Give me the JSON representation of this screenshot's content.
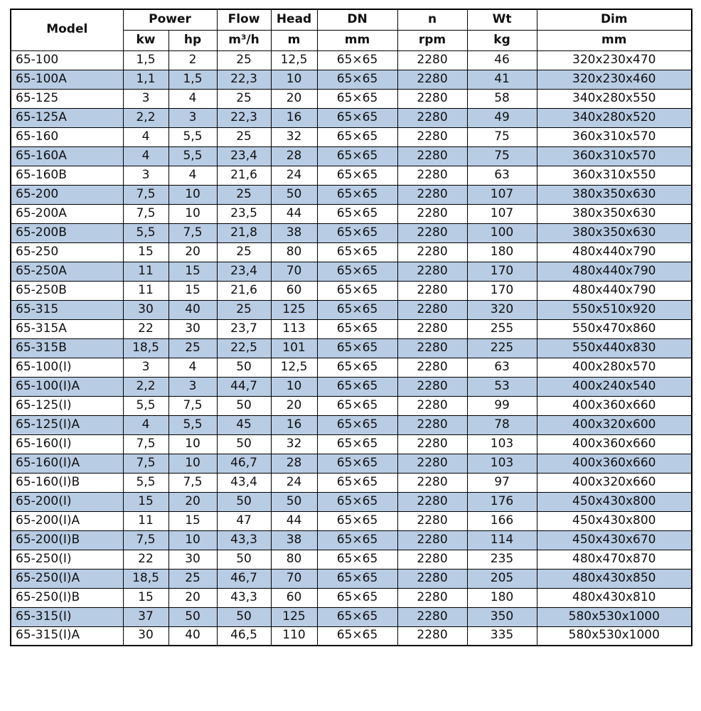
{
  "colors": {
    "row_bg": "#ffffff",
    "row_alt_bg": "#b8cce4",
    "border": "#000000",
    "text": "#111111"
  },
  "chart_data": {
    "type": "table",
    "header": {
      "row1": [
        {
          "label": "Model",
          "rowspan": 2
        },
        {
          "label": "Power",
          "colspan": 2
        },
        {
          "label": "Flow"
        },
        {
          "label": "Head"
        },
        {
          "label": "DN"
        },
        {
          "label": "n"
        },
        {
          "label": "Wt"
        },
        {
          "label": "Dim"
        }
      ],
      "row2": [
        "kw",
        "hp",
        "m³/h",
        "m",
        "mm",
        "rpm",
        "kg",
        "mm"
      ]
    },
    "rows": [
      [
        "65-100",
        "1,5",
        "2",
        "25",
        "12,5",
        "65×65",
        "2280",
        "46",
        "320x230x470"
      ],
      [
        "65-100A",
        "1,1",
        "1,5",
        "22,3",
        "10",
        "65×65",
        "2280",
        "41",
        "320x230x460"
      ],
      [
        "65-125",
        "3",
        "4",
        "25",
        "20",
        "65×65",
        "2280",
        "58",
        "340x280x550"
      ],
      [
        "65-125A",
        "2,2",
        "3",
        "22,3",
        "16",
        "65×65",
        "2280",
        "49",
        "340x280x520"
      ],
      [
        "65-160",
        "4",
        "5,5",
        "25",
        "32",
        "65×65",
        "2280",
        "75",
        "360x310x570"
      ],
      [
        "65-160A",
        "4",
        "5,5",
        "23,4",
        "28",
        "65×65",
        "2280",
        "75",
        "360x310x570"
      ],
      [
        "65-160B",
        "3",
        "4",
        "21,6",
        "24",
        "65×65",
        "2280",
        "63",
        "360x310x550"
      ],
      [
        "65-200",
        "7,5",
        "10",
        "25",
        "50",
        "65×65",
        "2280",
        "107",
        "380x350x630"
      ],
      [
        "65-200A",
        "7,5",
        "10",
        "23,5",
        "44",
        "65×65",
        "2280",
        "107",
        "380x350x630"
      ],
      [
        "65-200B",
        "5,5",
        "7,5",
        "21,8",
        "38",
        "65×65",
        "2280",
        "100",
        "380x350x630"
      ],
      [
        "65-250",
        "15",
        "20",
        "25",
        "80",
        "65×65",
        "2280",
        "180",
        "480x440x790"
      ],
      [
        "65-250A",
        "11",
        "15",
        "23,4",
        "70",
        "65×65",
        "2280",
        "170",
        "480x440x790"
      ],
      [
        "65-250B",
        "11",
        "15",
        "21,6",
        "60",
        "65×65",
        "2280",
        "170",
        "480x440x790"
      ],
      [
        "65-315",
        "30",
        "40",
        "25",
        "125",
        "65×65",
        "2280",
        "320",
        "550x510x920"
      ],
      [
        "65-315A",
        "22",
        "30",
        "23,7",
        "113",
        "65×65",
        "2280",
        "255",
        "550x470x860"
      ],
      [
        "65-315B",
        "18,5",
        "25",
        "22,5",
        "101",
        "65×65",
        "2280",
        "225",
        "550x440x830"
      ],
      [
        "65-100(I)",
        "3",
        "4",
        "50",
        "12,5",
        "65×65",
        "2280",
        "63",
        "400x280x570"
      ],
      [
        "65-100(I)A",
        "2,2",
        "3",
        "44,7",
        "10",
        "65×65",
        "2280",
        "53",
        "400x240x540"
      ],
      [
        "65-125(I)",
        "5,5",
        "7,5",
        "50",
        "20",
        "65×65",
        "2280",
        "99",
        "400x360x660"
      ],
      [
        "65-125(I)A",
        "4",
        "5,5",
        "45",
        "16",
        "65×65",
        "2280",
        "78",
        "400x320x600"
      ],
      [
        "65-160(I)",
        "7,5",
        "10",
        "50",
        "32",
        "65×65",
        "2280",
        "103",
        "400x360x660"
      ],
      [
        "65-160(I)A",
        "7,5",
        "10",
        "46,7",
        "28",
        "65×65",
        "2280",
        "103",
        "400x360x660"
      ],
      [
        "65-160(I)B",
        "5,5",
        "7,5",
        "43,4",
        "24",
        "65×65",
        "2280",
        "97",
        "400x320x660"
      ],
      [
        "65-200(I)",
        "15",
        "20",
        "50",
        "50",
        "65×65",
        "2280",
        "176",
        "450x430x800"
      ],
      [
        "65-200(I)A",
        "11",
        "15",
        "47",
        "44",
        "65×65",
        "2280",
        "166",
        "450x430x800"
      ],
      [
        "65-200(I)B",
        "7,5",
        "10",
        "43,3",
        "38",
        "65×65",
        "2280",
        "114",
        "450x430x670"
      ],
      [
        "65-250(I)",
        "22",
        "30",
        "50",
        "80",
        "65×65",
        "2280",
        "235",
        "480x470x870"
      ],
      [
        "65-250(I)A",
        "18,5",
        "25",
        "46,7",
        "70",
        "65×65",
        "2280",
        "205",
        "480x430x850"
      ],
      [
        "65-250(I)B",
        "15",
        "20",
        "43,3",
        "60",
        "65×65",
        "2280",
        "180",
        "480x430x810"
      ],
      [
        "65-315(I)",
        "37",
        "50",
        "50",
        "125",
        "65×65",
        "2280",
        "350",
        "580x530x1000"
      ],
      [
        "65-315(I)A",
        "30",
        "40",
        "46,5",
        "110",
        "65×65",
        "2280",
        "335",
        "580x530x1000"
      ]
    ]
  }
}
